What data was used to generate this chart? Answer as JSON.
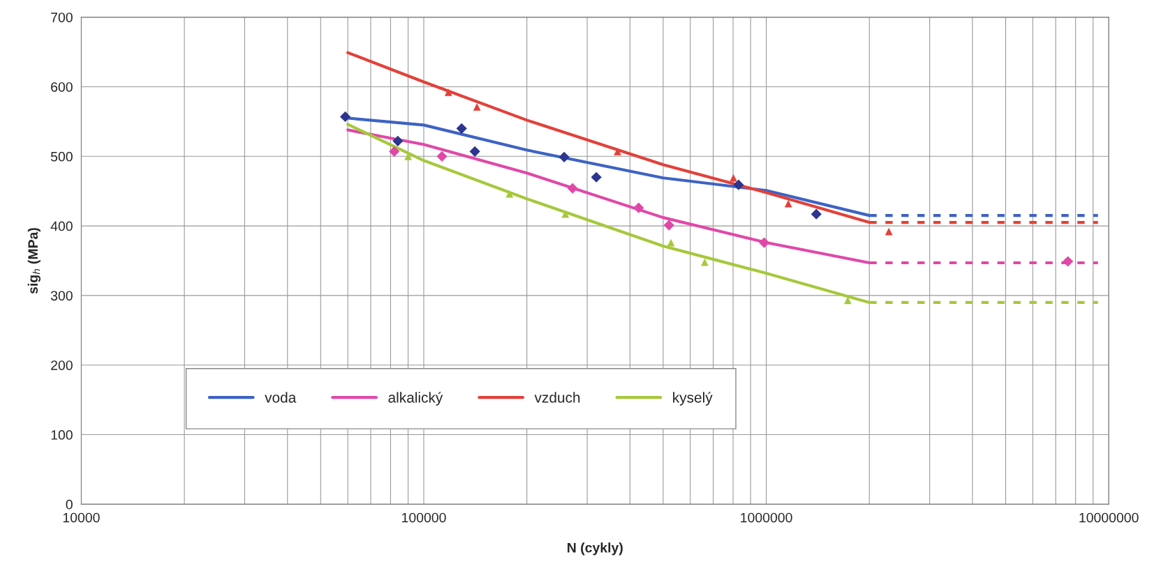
{
  "chart_data": {
    "type": "line",
    "xlabel": "N (cykly)",
    "ylabel": "sig$_{h}$ (MPa)",
    "log": "x",
    "xlim": [
      10000,
      10000000
    ],
    "xticks": [
      10000,
      100000,
      1000000,
      10000000
    ],
    "ylim": [
      0,
      700
    ],
    "yticks": [
      0,
      100,
      200,
      300,
      400,
      500,
      600,
      700
    ],
    "grid": true,
    "legend": "bottom left",
    "series": [
      {
        "name": "voda",
        "color": "#3d63c4",
        "marker": "none",
        "line_style": "solid",
        "x": [
          60000,
          100000,
          200000,
          500000,
          1000000,
          2000000
        ],
        "values": [
          555,
          545,
          509,
          469,
          451,
          415
        ]
      },
      {
        "name": "alkalický",
        "color": "#e048a8",
        "marker": "none",
        "line_style": "solid",
        "x": [
          60000,
          100000,
          200000,
          500000,
          1000000,
          2000000
        ],
        "values": [
          538,
          517,
          476,
          412,
          376,
          347
        ]
      },
      {
        "name": "vzduch",
        "color": "#e2413a",
        "marker": "none",
        "line_style": "solid",
        "x": [
          60000,
          100000,
          200000,
          500000,
          1000000,
          2000000
        ],
        "values": [
          649,
          607,
          552,
          488,
          448,
          405
        ]
      },
      {
        "name": "kyselý",
        "color": "#a6c83c",
        "marker": "none",
        "line_style": "solid",
        "x": [
          60000,
          100000,
          200000,
          500000,
          1000000,
          2000000
        ],
        "values": [
          546,
          494,
          439,
          371,
          332,
          290
        ]
      },
      {
        "color": "#3d63c4",
        "marker": "none",
        "line_style": "dashed",
        "x": [
          2000000,
          9300000
        ],
        "values": [
          415,
          415
        ]
      },
      {
        "color": "#e048a8",
        "marker": "none",
        "line_style": "dashed",
        "x": [
          2000000,
          9300000
        ],
        "values": [
          347,
          347
        ]
      },
      {
        "color": "#e2413a",
        "marker": "none",
        "line_style": "dashed",
        "x": [
          2000000,
          9300000
        ],
        "values": [
          405,
          405
        ]
      },
      {
        "color": "#a6c83c",
        "marker": "none",
        "line_style": "dashed",
        "x": [
          2000000,
          9300000
        ],
        "values": [
          290,
          290
        ]
      },
      {
        "type": "scatter",
        "color": "#2c3590",
        "marker": "diamond",
        "x": [
          59000,
          84000,
          129000,
          141000,
          257000,
          319000,
          830000,
          1400000
        ],
        "values": [
          557,
          522,
          540,
          507,
          499,
          470,
          459,
          417
        ]
      },
      {
        "type": "scatter",
        "color": "#e048a8",
        "marker": "diamond",
        "x": [
          82000,
          113000,
          272000,
          424000,
          520000,
          986000,
          7600000
        ],
        "values": [
          507,
          500,
          454,
          426,
          401,
          376,
          349
        ]
      },
      {
        "type": "scatter",
        "color": "#e2413a",
        "marker": "triangle",
        "x": [
          118000,
          143000,
          368000,
          802000,
          1160000,
          2280000
        ],
        "values": [
          592,
          571,
          507,
          469,
          432,
          392
        ]
      },
      {
        "type": "scatter",
        "color": "#a6c83c",
        "marker": "triangle",
        "x": [
          90000,
          178000,
          259000,
          527000,
          661000,
          1730000
        ],
        "values": [
          500,
          446,
          417,
          376,
          348,
          293
        ]
      }
    ]
  }
}
